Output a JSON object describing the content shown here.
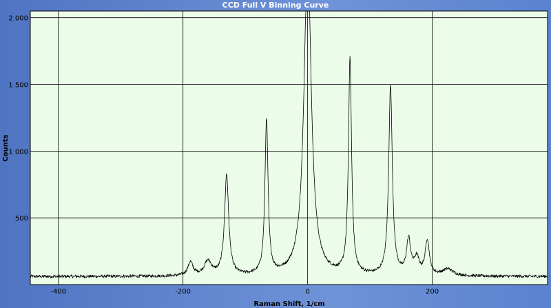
{
  "chart_data": {
    "type": "line",
    "title": "CCD Full V Binning Curve",
    "xlabel": "Raman Shift, 1/cm",
    "ylabel": "Counts",
    "xlim": [
      -445,
      385
    ],
    "ylim": [
      0,
      2050
    ],
    "x_ticks": [
      -400,
      -200,
      0,
      200
    ],
    "x_tick_labels": [
      "-400",
      "-200",
      "0",
      "200"
    ],
    "y_ticks": [
      500,
      1000,
      1500,
      2000
    ],
    "y_tick_labels": [
      "500",
      "1 000",
      "1 500",
      "2 000"
    ],
    "grid": true,
    "background_color": "#ebfde9",
    "line_color": "#000000",
    "baseline_counts": 60,
    "peaks": [
      {
        "x": -188,
        "height": 100,
        "width": 5
      },
      {
        "x": -160,
        "height": 105,
        "width": 7
      },
      {
        "x": -130,
        "height": 755,
        "width": 4
      },
      {
        "x": -66,
        "height": 1165,
        "width": 3
      },
      {
        "x": 0,
        "height": 2400,
        "width": 7
      },
      {
        "x": 68,
        "height": 1615,
        "width": 3
      },
      {
        "x": 133,
        "height": 1415,
        "width": 3.5
      },
      {
        "x": 162,
        "height": 260,
        "width": 4
      },
      {
        "x": 175,
        "height": 120,
        "width": 5
      },
      {
        "x": 192,
        "height": 260,
        "width": 4
      },
      {
        "x": 225,
        "height": 50,
        "width": 10
      }
    ]
  }
}
